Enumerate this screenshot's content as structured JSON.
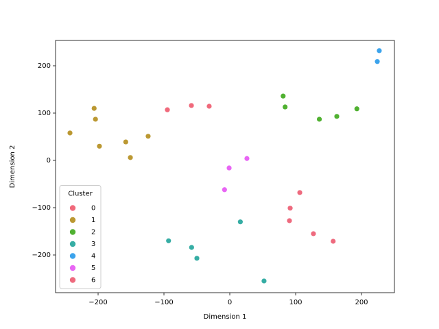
{
  "chart_data": {
    "type": "scatter",
    "x_label": "Dimension 1",
    "y_label": "Dimension 2",
    "xlim": [
      -264.6,
      250
    ],
    "ylim": [
      -279.7,
      253.6
    ],
    "xticks": [
      {
        "value": -200,
        "label": "−200"
      },
      {
        "value": -100,
        "label": "−100"
      },
      0,
      100,
      200
    ],
    "yticks": [
      {
        "value": -200,
        "label": "−200"
      },
      {
        "value": -100,
        "label": "−100"
      },
      0,
      100,
      200
    ],
    "legend_title": "Cluster",
    "legend": "lower left",
    "series": [
      {
        "name": "0",
        "color": "#f0697b",
        "x": [
          -94.8,
          -58.3,
          -31.3
        ],
        "values": [
          107,
          116,
          114.5
        ]
      },
      {
        "name": "1",
        "color": "#bb9832",
        "x": [
          -242.7,
          -206,
          -204,
          -198,
          -158,
          -124,
          -151
        ],
        "values": [
          58,
          110,
          87,
          30,
          39,
          51,
          6
        ]
      },
      {
        "name": "2",
        "color": "#50b131",
        "x": [
          81,
          84,
          136,
          162.5,
          193
        ],
        "values": [
          136,
          113,
          87,
          93,
          109
        ]
      },
      {
        "name": "3",
        "color": "#36ada4",
        "x": [
          -93,
          -58,
          -50,
          16,
          52
        ],
        "values": [
          -170,
          -184,
          -207,
          -130,
          -255
        ]
      },
      {
        "name": "4",
        "color": "#3ba3ec",
        "x": [
          227,
          224
        ],
        "values": [
          232,
          209
        ]
      },
      {
        "name": "5",
        "color": "#e866f4",
        "x": [
          -1,
          26,
          -8
        ],
        "values": [
          -16,
          4,
          -62
        ]
      },
      {
        "name": "6",
        "color": "#ee6a7e",
        "x": [
          106.3,
          91.7,
          90.6,
          127,
          157
        ],
        "values": [
          -68,
          -101,
          -127.5,
          -155,
          -171
        ]
      }
    ]
  }
}
